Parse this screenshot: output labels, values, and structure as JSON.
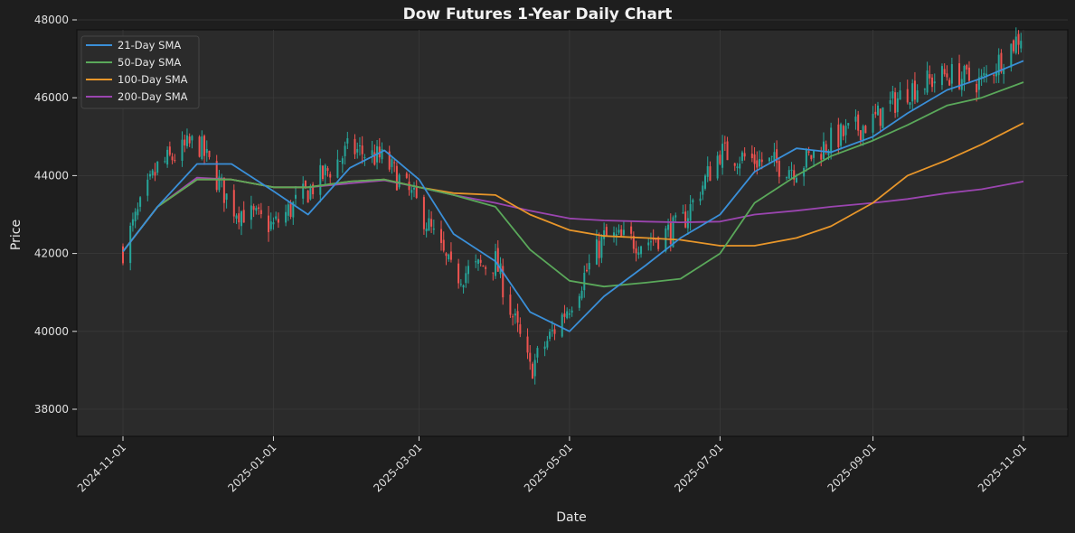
{
  "title": "Dow Futures 1-Year Daily Chart",
  "chart_data": {
    "type": "line",
    "subtype": "candlestick with moving averages",
    "title": "Dow Futures 1-Year Daily Chart",
    "xlabel": "Date",
    "ylabel": "Price",
    "ylim": [
      37250,
      48400
    ],
    "xlim": [
      "2024-10-14",
      "2025-11-18"
    ],
    "grid": true,
    "legend_position": "upper left",
    "x_ticks": [
      "2024-11-01",
      "2025-01-01",
      "2025-03-01",
      "2025-05-01",
      "2025-07-01",
      "2025-09-01",
      "2025-11-01"
    ],
    "y_ticks": [
      38000,
      40000,
      42000,
      44000,
      46000,
      48000
    ],
    "colors": {
      "up": "#26a69a",
      "down": "#ef5350",
      "sma21": "#3a8fd8",
      "sma50": "#5aa85a",
      "sma100": "#e8962a",
      "sma200": "#9b45b0",
      "background": "#1e1e1e",
      "plot_bg": "#2b2b2b"
    },
    "x": [
      "2024-11-01",
      "2024-11-15",
      "2024-12-01",
      "2024-12-15",
      "2025-01-01",
      "2025-01-15",
      "2025-02-01",
      "2025-02-15",
      "2025-03-01",
      "2025-03-15",
      "2025-04-01",
      "2025-04-15",
      "2025-05-01",
      "2025-05-15",
      "2025-06-01",
      "2025-06-15",
      "2025-07-01",
      "2025-07-15",
      "2025-08-01",
      "2025-08-15",
      "2025-09-01",
      "2025-09-15",
      "2025-10-01",
      "2025-10-15",
      "2025-11-01"
    ],
    "close_approx": [
      42100,
      44200,
      44900,
      43200,
      42700,
      43600,
      44700,
      44400,
      43200,
      41400,
      41800,
      39000,
      40700,
      42400,
      42300,
      42700,
      44600,
      44400,
      44200,
      44900,
      45400,
      46200,
      46600,
      46400,
      47700
    ],
    "series": [
      {
        "name": "21-Day SMA",
        "values": [
          42050,
          43200,
          44300,
          44300,
          43600,
          43000,
          44200,
          44650,
          43900,
          42500,
          41800,
          40500,
          40000,
          40900,
          41700,
          42400,
          43000,
          44100,
          44700,
          44600,
          45000,
          45600,
          46200,
          46500,
          46950
        ]
      },
      {
        "name": "50-Day SMA",
        "values": [
          42050,
          43200,
          43900,
          43900,
          43700,
          43700,
          43850,
          43900,
          43700,
          43500,
          43200,
          42100,
          41300,
          41150,
          41250,
          41350,
          42000,
          43300,
          44000,
          44500,
          44900,
          45300,
          45800,
          46000,
          46400
        ]
      },
      {
        "name": "100-Day SMA",
        "values": [
          42050,
          43200,
          43900,
          43900,
          43700,
          43700,
          43850,
          43900,
          43700,
          43550,
          43500,
          43000,
          42600,
          42450,
          42400,
          42350,
          42200,
          42200,
          42400,
          42700,
          43300,
          44000,
          44400,
          44800,
          45350
        ]
      },
      {
        "name": "200-Day SMA",
        "values": [
          42050,
          43200,
          43950,
          43900,
          43700,
          43700,
          43800,
          43880,
          43700,
          43500,
          43300,
          43100,
          42900,
          42850,
          42820,
          42800,
          42820,
          43000,
          43100,
          43200,
          43300,
          43400,
          43550,
          43650,
          43850
        ]
      }
    ]
  }
}
